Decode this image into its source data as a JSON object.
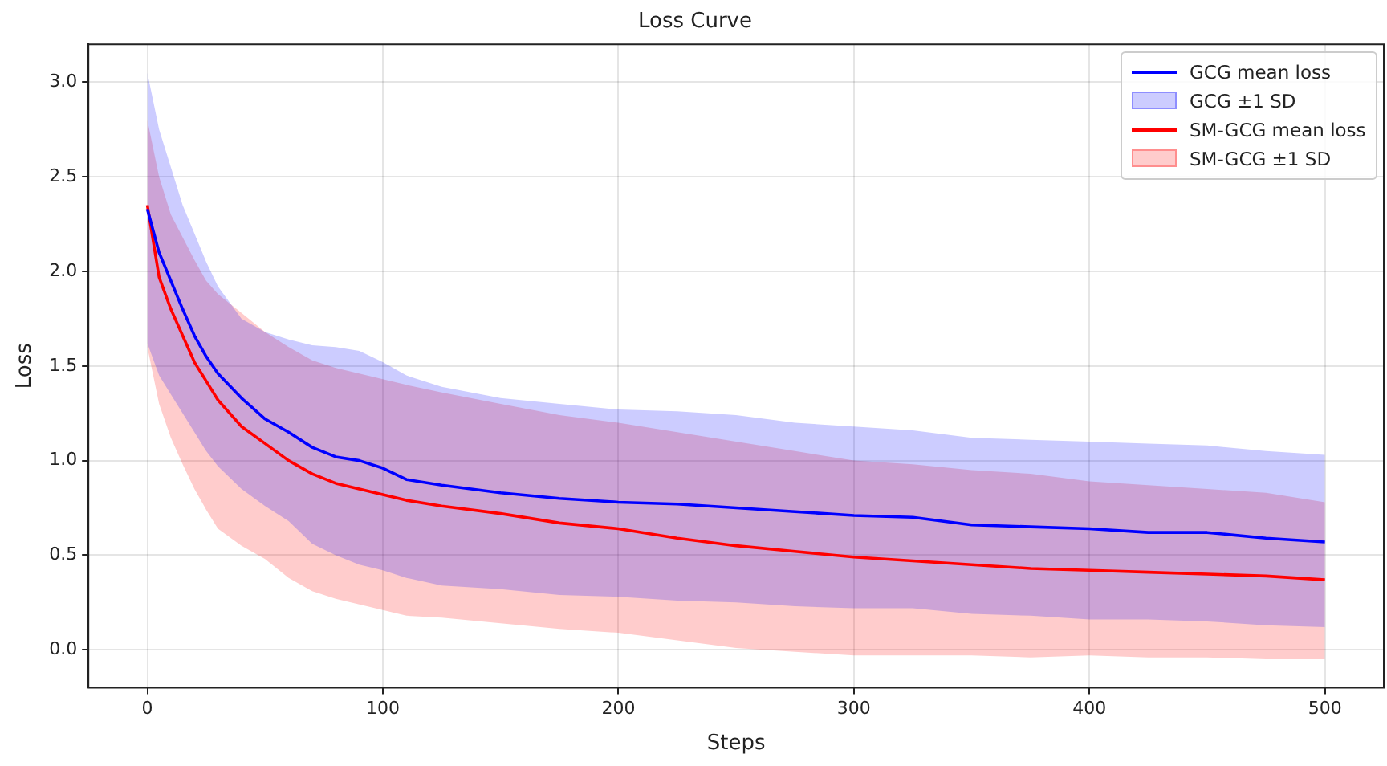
{
  "chart_data": {
    "type": "line",
    "title": "Loss Curve",
    "xlabel": "Steps",
    "ylabel": "Loss",
    "x": [
      0,
      5,
      10,
      15,
      20,
      25,
      30,
      40,
      50,
      60,
      70,
      80,
      90,
      100,
      110,
      125,
      150,
      175,
      200,
      225,
      250,
      275,
      300,
      325,
      350,
      375,
      400,
      425,
      450,
      475,
      500
    ],
    "series": [
      {
        "name": "GCG mean loss",
        "color": "#0000ff",
        "values": [
          2.33,
          2.1,
          1.95,
          1.8,
          1.66,
          1.55,
          1.46,
          1.33,
          1.22,
          1.15,
          1.07,
          1.02,
          1.0,
          0.96,
          0.9,
          0.87,
          0.83,
          0.8,
          0.78,
          0.77,
          0.75,
          0.73,
          0.71,
          0.7,
          0.66,
          0.65,
          0.64,
          0.62,
          0.62,
          0.59,
          0.57
        ],
        "lower": [
          1.62,
          1.45,
          1.35,
          1.25,
          1.15,
          1.05,
          0.97,
          0.85,
          0.76,
          0.68,
          0.56,
          0.5,
          0.45,
          0.42,
          0.38,
          0.34,
          0.32,
          0.29,
          0.28,
          0.26,
          0.25,
          0.23,
          0.22,
          0.22,
          0.19,
          0.18,
          0.16,
          0.16,
          0.15,
          0.13,
          0.12
        ],
        "upper": [
          3.05,
          2.75,
          2.55,
          2.35,
          2.2,
          2.05,
          1.92,
          1.75,
          1.68,
          1.64,
          1.61,
          1.6,
          1.58,
          1.52,
          1.45,
          1.39,
          1.33,
          1.3,
          1.27,
          1.26,
          1.24,
          1.2,
          1.18,
          1.16,
          1.12,
          1.11,
          1.1,
          1.09,
          1.08,
          1.05,
          1.03
        ]
      },
      {
        "name": "SM-GCG mean loss",
        "color": "#ff0000",
        "values": [
          2.35,
          1.97,
          1.8,
          1.66,
          1.52,
          1.42,
          1.32,
          1.18,
          1.09,
          1.0,
          0.93,
          0.88,
          0.85,
          0.82,
          0.79,
          0.76,
          0.72,
          0.67,
          0.64,
          0.59,
          0.55,
          0.52,
          0.49,
          0.47,
          0.45,
          0.43,
          0.42,
          0.41,
          0.4,
          0.39,
          0.37
        ],
        "lower": [
          1.6,
          1.3,
          1.12,
          0.98,
          0.85,
          0.74,
          0.64,
          0.55,
          0.48,
          0.38,
          0.31,
          0.27,
          0.24,
          0.21,
          0.18,
          0.17,
          0.14,
          0.11,
          0.09,
          0.05,
          0.01,
          -0.01,
          -0.03,
          -0.03,
          -0.03,
          -0.04,
          -0.03,
          -0.04,
          -0.04,
          -0.05,
          -0.05
        ],
        "upper": [
          2.8,
          2.5,
          2.3,
          2.18,
          2.06,
          1.95,
          1.88,
          1.78,
          1.68,
          1.6,
          1.53,
          1.49,
          1.46,
          1.43,
          1.4,
          1.36,
          1.3,
          1.24,
          1.2,
          1.15,
          1.1,
          1.05,
          1.0,
          0.98,
          0.95,
          0.93,
          0.89,
          0.87,
          0.85,
          0.83,
          0.78
        ]
      }
    ],
    "annotations": [
      "GCG ±1 SD",
      "SM-GCG ±1 SD"
    ],
    "xlim": [
      -25,
      525
    ],
    "xticks": [
      0,
      100,
      200,
      300,
      400,
      500
    ],
    "ylim": [
      -0.2,
      3.2
    ],
    "yticks": [
      {
        "value": 0,
        "label": "0.0"
      },
      {
        "value": 0.5,
        "label": "0.5"
      },
      {
        "value": 1,
        "label": "1.0"
      },
      {
        "value": 1.5,
        "label": "1.5"
      },
      {
        "value": 2,
        "label": "2.0"
      },
      {
        "value": 2.5,
        "label": "2.5"
      },
      {
        "value": 3,
        "label": "3.0"
      }
    ],
    "grid": true,
    "legend": "top right",
    "marker": "none",
    "line_style": "solid"
  }
}
